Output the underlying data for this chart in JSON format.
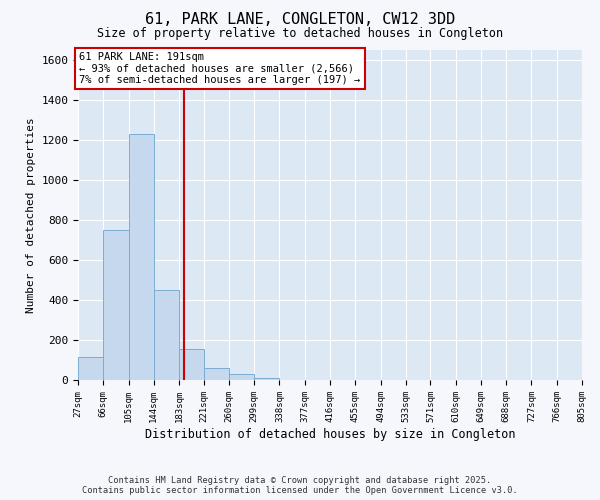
{
  "title": "61, PARK LANE, CONGLETON, CW12 3DD",
  "subtitle": "Size of property relative to detached houses in Congleton",
  "xlabel": "Distribution of detached houses by size in Congleton",
  "ylabel": "Number of detached properties",
  "bar_edges": [
    27,
    66,
    105,
    144,
    183,
    221,
    260,
    299,
    338,
    377,
    416,
    455,
    494,
    533,
    571,
    610,
    649,
    688,
    727,
    766,
    805
  ],
  "bar_heights": [
    115,
    750,
    1230,
    450,
    155,
    60,
    30,
    10,
    0,
    0,
    0,
    0,
    0,
    0,
    0,
    0,
    0,
    0,
    0,
    0
  ],
  "bar_color": "#c5d8ee",
  "bar_edge_color": "#7aadd4",
  "vline_x": 191,
  "vline_color": "#cc0000",
  "annotation_text": "61 PARK LANE: 191sqm\n← 93% of detached houses are smaller (2,566)\n7% of semi-detached houses are larger (197) →",
  "annotation_box_facecolor": "#ffffff",
  "annotation_box_edgecolor": "#cc0000",
  "ylim": [
    0,
    1650
  ],
  "yticks": [
    0,
    200,
    400,
    600,
    800,
    1000,
    1200,
    1400,
    1600
  ],
  "bg_color": "#dde8f5",
  "grid_color": "#ffffff",
  "footer_line1": "Contains HM Land Registry data © Crown copyright and database right 2025.",
  "footer_line2": "Contains public sector information licensed under the Open Government Licence v3.0."
}
